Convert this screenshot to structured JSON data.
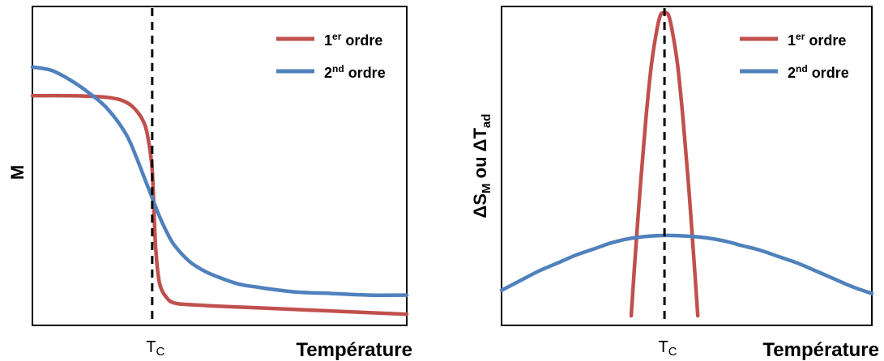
{
  "chart_data": [
    {
      "type": "line",
      "ylabel": "M",
      "xlabel": "Température",
      "x_tick": {
        "main": "T",
        "sub": "C"
      },
      "legend_position": "top-right",
      "grid": false,
      "colors": {
        "first": "#c0504d",
        "second": "#4f81bd",
        "marker": "#000000"
      },
      "legend": [
        {
          "main": "1",
          "sup": "er",
          "rest": " ordre"
        },
        {
          "main": "2",
          "sup": "nd",
          "rest": " ordre"
        }
      ],
      "xlim": [
        0,
        10
      ],
      "ylim": [
        0,
        10
      ],
      "tc": 3.2,
      "series": [
        {
          "key": "first",
          "x": [
            0,
            1,
            2,
            2.5,
            2.8,
            3.0,
            3.1,
            3.2,
            3.25,
            3.3,
            3.4,
            3.6,
            3.8,
            4.2,
            5,
            6,
            7,
            8,
            9,
            10
          ],
          "y": [
            7.2,
            7.2,
            7.15,
            7.0,
            6.7,
            6.3,
            5.8,
            4.9,
            3.5,
            2.3,
            1.3,
            0.85,
            0.7,
            0.65,
            0.6,
            0.55,
            0.5,
            0.45,
            0.4,
            0.35
          ]
        },
        {
          "key": "second",
          "x": [
            0,
            0.5,
            1,
            1.5,
            2,
            2.5,
            2.8,
            3.0,
            3.2,
            3.4,
            3.6,
            3.8,
            4.2,
            4.6,
            5,
            5.5,
            6,
            7,
            8,
            9,
            10
          ],
          "y": [
            8.1,
            8.0,
            7.7,
            7.3,
            6.8,
            6.0,
            5.2,
            4.6,
            4.0,
            3.4,
            2.9,
            2.5,
            2.0,
            1.7,
            1.5,
            1.3,
            1.2,
            1.05,
            1.0,
            0.95,
            0.95
          ]
        }
      ]
    },
    {
      "type": "line",
      "ylabel": {
        "parts": [
          "ΔS",
          "M",
          " ou ΔT",
          "ad"
        ]
      },
      "xlabel": "Température",
      "x_tick": {
        "main": "T",
        "sub": "C"
      },
      "legend_position": "top-right",
      "grid": false,
      "colors": {
        "first": "#c0504d",
        "second": "#4f81bd",
        "marker": "#000000"
      },
      "legend": [
        {
          "main": "1",
          "sup": "er",
          "rest": " ordre"
        },
        {
          "main": "2",
          "sup": "nd",
          "rest": " ordre"
        }
      ],
      "xlim": [
        0,
        10
      ],
      "ylim": [
        0,
        10
      ],
      "tc": 4.4,
      "series": [
        {
          "key": "first",
          "x": [
            3.5,
            3.6,
            3.75,
            3.9,
            4.05,
            4.2,
            4.3,
            4.4,
            4.5,
            4.6,
            4.75,
            4.9,
            5.05,
            5.2,
            5.3
          ],
          "y": [
            0.3,
            2.0,
            4.4,
            6.5,
            8.2,
            9.3,
            9.75,
            9.8,
            9.75,
            9.3,
            8.2,
            6.5,
            4.4,
            2.0,
            0.3
          ]
        },
        {
          "key": "second",
          "x": [
            0,
            0.5,
            1,
            1.5,
            2,
            2.5,
            3,
            3.5,
            4,
            4.5,
            5,
            5.5,
            6,
            6.5,
            7,
            7.5,
            8,
            8.5,
            9,
            9.5,
            10
          ],
          "y": [
            1.1,
            1.4,
            1.7,
            1.95,
            2.2,
            2.4,
            2.6,
            2.73,
            2.8,
            2.82,
            2.8,
            2.75,
            2.65,
            2.5,
            2.35,
            2.15,
            1.95,
            1.7,
            1.45,
            1.2,
            1.0
          ]
        }
      ]
    }
  ]
}
